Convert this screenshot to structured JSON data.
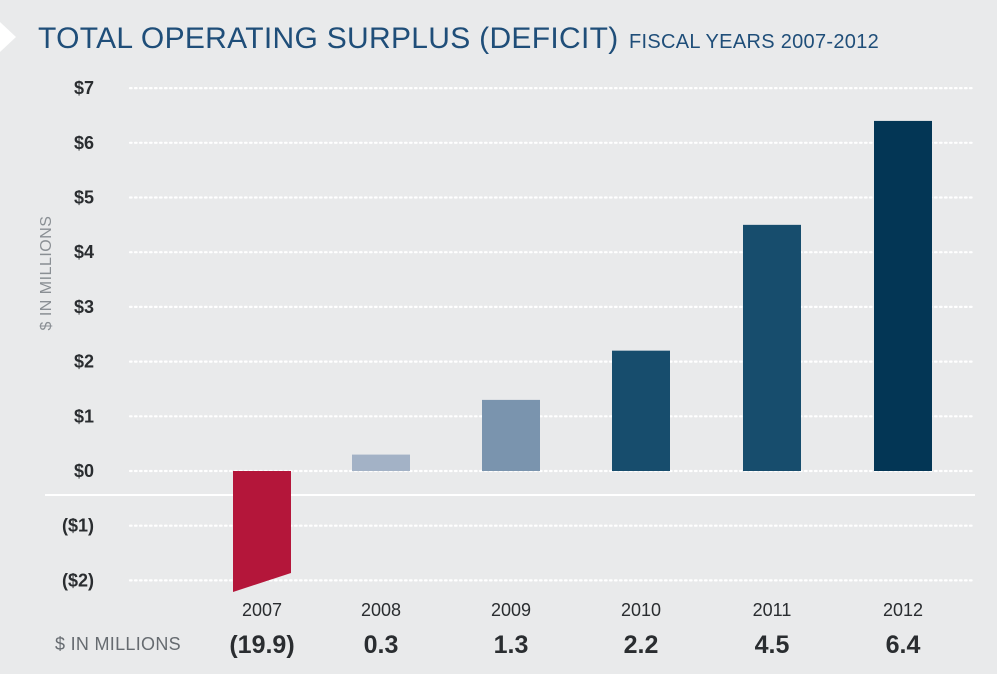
{
  "header": {
    "title": "TOTAL OPERATING SURPLUS (DEFICIT)",
    "subtitle": "FISCAL YEARS 2007-2012"
  },
  "value_row_label": "$ IN MILLIONS",
  "chart_data": {
    "type": "bar",
    "title": "TOTAL OPERATING SURPLUS (DEFICIT)",
    "subtitle": "FISCAL YEARS 2007-2012",
    "ylabel": "$ IN MILLIONS",
    "xlabel": "",
    "ylim": [
      -2,
      7
    ],
    "grid": true,
    "y_ticks": [
      7,
      6,
      5,
      4,
      3,
      2,
      1,
      0,
      -1,
      -2
    ],
    "y_tick_labels": [
      "$7",
      "$6",
      "$5",
      "$4",
      "$3",
      "$2",
      "$1",
      "$0",
      "($1)",
      "($2)"
    ],
    "categories": [
      "2007",
      "2008",
      "2009",
      "2010",
      "2011",
      "2012"
    ],
    "values": [
      -19.9,
      0.3,
      1.3,
      2.2,
      4.5,
      6.4
    ],
    "value_labels": [
      "(19.9)",
      "0.3",
      "1.3",
      "2.2",
      "4.5",
      "6.4"
    ],
    "colors": [
      "#b4163a",
      "#a3b2c6",
      "#7a94ae",
      "#174d6d",
      "#174d6d",
      "#033655"
    ],
    "note": "2007 bar is truncated at the bottom of the axis"
  }
}
